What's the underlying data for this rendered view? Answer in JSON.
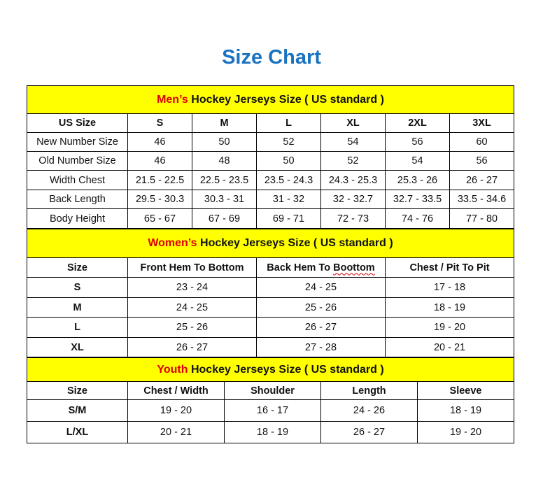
{
  "title": "Size Chart",
  "men": {
    "highlight": "Men’s",
    "rest": " Hockey Jerseys Size ( US standard )",
    "headers": [
      "US Size",
      "S",
      "M",
      "L",
      "XL",
      "2XL",
      "3XL"
    ],
    "rows": [
      [
        "New Number Size",
        "46",
        "50",
        "52",
        "54",
        "56",
        "60"
      ],
      [
        "Old Number Size",
        "46",
        "48",
        "50",
        "52",
        "54",
        "56"
      ],
      [
        "Width Chest",
        "21.5 - 22.5",
        "22.5 - 23.5",
        "23.5 - 24.3",
        "24.3 - 25.3",
        "25.3 - 26",
        "26 - 27"
      ],
      [
        "Back Length",
        "29.5 - 30.3",
        "30.3 - 31",
        "31 - 32",
        "32 - 32.7",
        "32.7 - 33.5",
        "33.5 - 34.6"
      ],
      [
        "Body Height",
        "65 - 67",
        "67 - 69",
        "69 - 71",
        "72 - 73",
        "74 - 76",
        "77 - 80"
      ]
    ]
  },
  "women": {
    "highlight": "Women’s",
    "rest": " Hockey Jerseys Size ( US standard )",
    "headers": [
      "Size",
      "Front Hem To Bottom",
      "Back Hem To Boottom",
      "Chest / Pit To Pit"
    ],
    "rows": [
      [
        "S",
        "23 - 24",
        "24 - 25",
        "17 - 18"
      ],
      [
        "M",
        "24 - 25",
        "25 - 26",
        "18 - 19"
      ],
      [
        "L",
        "25 - 26",
        "26 - 27",
        "19 - 20"
      ],
      [
        "XL",
        "26 - 27",
        "27 - 28",
        "20 - 21"
      ]
    ]
  },
  "youth": {
    "highlight": "Youth",
    "rest": " Hockey Jerseys Size ( US standard )",
    "headers": [
      "Size",
      "Chest / Width",
      "Shoulder",
      "Length",
      "Sleeve"
    ],
    "rows": [
      [
        "S/M",
        "19 - 20",
        "16 - 17",
        "24 - 26",
        "18 - 19"
      ],
      [
        "L/XL",
        "20 - 21",
        "18 - 19",
        "26 - 27",
        "19 - 20"
      ]
    ]
  },
  "colors": {
    "title": "#1a73c0",
    "band": "#ffff00",
    "highlight": "#e00000"
  }
}
